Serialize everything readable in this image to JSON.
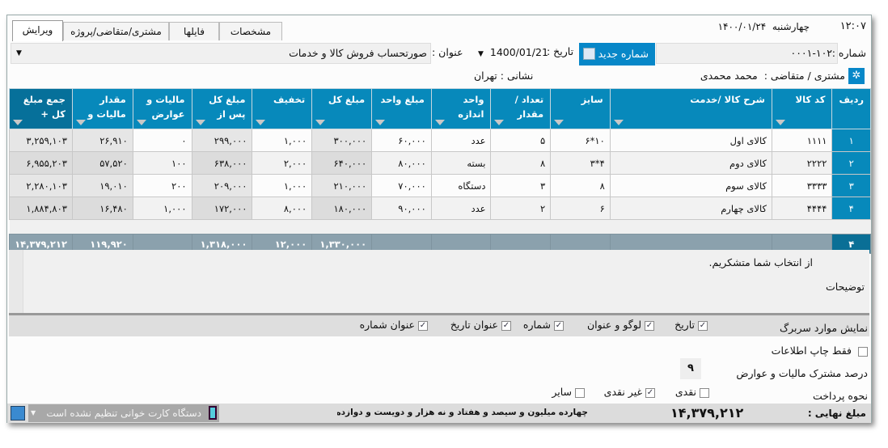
{
  "header": {
    "clock": "۱۲:۰۷",
    "day": "چهارشنبه",
    "date": "۱۴۰۰/۰۱/۲۴"
  },
  "tabs": [
    {
      "label": "ویرایش",
      "active": true
    },
    {
      "label": "مشتری/متقاضی/پروژه"
    },
    {
      "label": "فایلها"
    },
    {
      "label": "مشخصات"
    }
  ],
  "form": {
    "number_label": "شماره :",
    "number_value": "۰۰۰۱-۱۰۲",
    "new_number_button": "شماره جدید",
    "date_label": "تاریخ :",
    "date_value": "1400/01/21",
    "title_label": "عنوان :",
    "title_value": "صورتحساب فروش کالا و خدمات",
    "customer_label": "مشتری / متقاضی :",
    "customer_value": "محمد محمدی",
    "address_label": "نشانی :",
    "address_value": "تهران"
  },
  "table": {
    "columns": [
      "ردیف",
      "کد کالا",
      "شرح کالا /خدمت",
      "سایز",
      "تعداد /مقدار",
      "واحد اندازه",
      "مبلغ واحد",
      "مبلغ کل",
      "تخفیف",
      "مبلغ کل پس از",
      "مالیات و عوارض",
      "مقدار مالیات و",
      "جمع مبلغ کل +"
    ],
    "rows": [
      [
        "۱",
        "۱۱۱۱",
        "کالای اول",
        "۱۰*۶",
        "۵",
        "عدد",
        "۶۰,۰۰۰",
        "۳۰۰,۰۰۰",
        "۱,۰۰۰",
        "۲۹۹,۰۰۰",
        "۰",
        "۲۶,۹۱۰",
        "۳,۲۵۹,۱۰۳"
      ],
      [
        "۲",
        "۲۲۲۲",
        "کالای دوم",
        "۴*۳",
        "۸",
        "بسته",
        "۸۰,۰۰۰",
        "۶۴۰,۰۰۰",
        "۲,۰۰۰",
        "۶۳۸,۰۰۰",
        "۱۰۰",
        "۵۷,۵۲۰",
        "۶,۹۵۵,۲۰۳"
      ],
      [
        "۳",
        "۳۳۳۳",
        "کالای سوم",
        "۸",
        "۳",
        "دستگاه",
        "۷۰,۰۰۰",
        "۲۱۰,۰۰۰",
        "۱,۰۰۰",
        "۲۰۹,۰۰۰",
        "۲۰۰",
        "۱۹,۰۱۰",
        "۲,۲۸۰,۱۰۳"
      ],
      [
        "۴",
        "۴۴۴۴",
        "کالای چهارم",
        "۶",
        "۲",
        "عدد",
        "۹۰,۰۰۰",
        "۱۸۰,۰۰۰",
        "۸,۰۰۰",
        "۱۷۲,۰۰۰",
        "۱,۰۰۰",
        "۱۶,۴۸۰",
        "۱,۸۸۴,۸۰۳"
      ]
    ],
    "totals": [
      "۴",
      "",
      "",
      "",
      "",
      "",
      "",
      "۱,۳۳۰,۰۰۰",
      "۱۲,۰۰۰",
      "۱,۳۱۸,۰۰۰",
      "",
      "۱۱۹,۹۲۰",
      "۱۴,۳۷۹,۲۱۲"
    ]
  },
  "notes": {
    "label": "توضیحات",
    "value": "از انتخاب شما متشکریم."
  },
  "header_options": {
    "label": "نمایش موارد سربرگ",
    "items": [
      {
        "label": "تاریخ",
        "checked": true
      },
      {
        "label": "لوگو و عنوان",
        "checked": true
      },
      {
        "label": "شماره",
        "checked": true
      },
      {
        "label": "عنوان تاریخ",
        "checked": true
      },
      {
        "label": "عنوان شماره",
        "checked": true
      }
    ]
  },
  "print_only": {
    "label": "فقط چاپ اطلاعات",
    "checked": false
  },
  "tax_percent": {
    "label": "درصد مشترک مالیات و عوارض",
    "value": "۹"
  },
  "payment": {
    "label": "نحوه پرداخت",
    "items": [
      {
        "label": "نقدی",
        "checked": false
      },
      {
        "label": "غیر نقدی",
        "checked": true
      },
      {
        "label": "سایر",
        "checked": false
      }
    ]
  },
  "footer": {
    "final_label": "مبلغ نهایی :",
    "final_amount": "۱۴,۳۷۹,۲۱۲",
    "amount_words": "چهارده میلیون و سیصد و هفتاد و نه هزار و دویست و دوازده ریال",
    "card_reader": "دستگاه کارت خوانی تنظیم نشده است"
  },
  "colors": {
    "accent": "#0789bb",
    "footer_row": "#8ba1ad"
  }
}
